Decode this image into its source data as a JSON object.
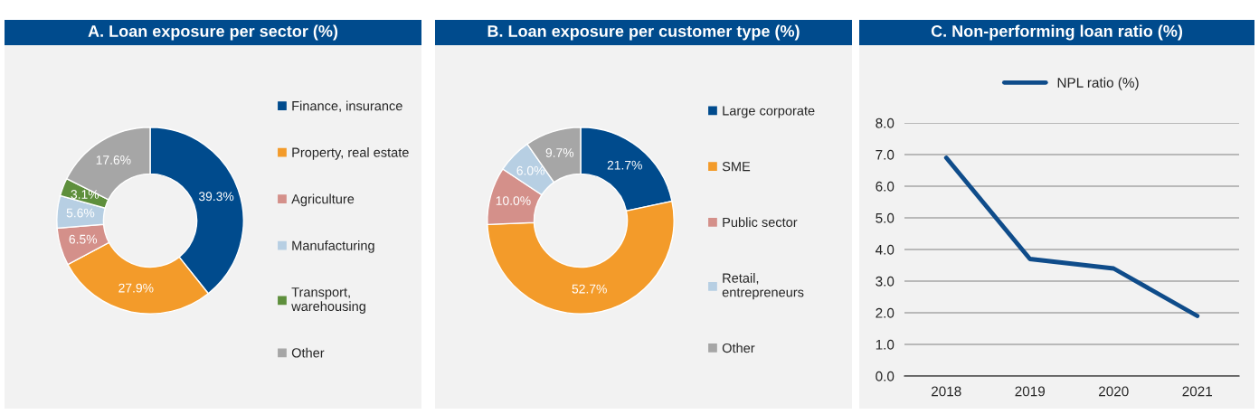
{
  "chart_data": [
    {
      "type": "donut",
      "title": "A. Loan exposure per sector (%)",
      "categories": [
        "Finance, insurance",
        "Property, real estate",
        "Agriculture",
        "Manufacturing",
        "Transport,\nwarehousing",
        "Other"
      ],
      "values": [
        39.3,
        27.9,
        6.5,
        5.6,
        3.1,
        17.6
      ],
      "colors": [
        "#004b8d",
        "#f39b2a",
        "#d4908a",
        "#b7cfe3",
        "#5e8f3c",
        "#a6a6a6"
      ],
      "value_labels": [
        "39.3%",
        "27.9%",
        "6.5%",
        "5.6%",
        "3.1%",
        "17.6%"
      ],
      "legend": "right"
    },
    {
      "type": "donut",
      "title": "B. Loan exposure per customer type (%)",
      "categories": [
        "Large corporate",
        "SME",
        "Public sector",
        "Retail,\nentrepreneurs",
        "Other"
      ],
      "values": [
        21.7,
        52.7,
        10.0,
        6.0,
        9.7
      ],
      "colors": [
        "#004b8d",
        "#f39b2a",
        "#d4908a",
        "#b7cfe3",
        "#a6a6a6"
      ],
      "value_labels": [
        "21.7%",
        "52.7%",
        "10.0%",
        "6.0%",
        "9.7%"
      ],
      "legend": "right"
    },
    {
      "type": "line",
      "title": "C. Non-performing loan ratio (%)",
      "categories": [
        "2018",
        "2019",
        "2020",
        "2021"
      ],
      "series": [
        {
          "name": "NPL ratio (%)",
          "color": "#0f4c8a",
          "values": [
            6.9,
            3.7,
            3.4,
            1.9
          ]
        }
      ],
      "ylim": [
        0,
        8
      ],
      "yticks": [
        {
          "value": 0,
          "label": "0.0"
        },
        {
          "value": 1,
          "label": "1.0"
        },
        {
          "value": 2,
          "label": "2.0"
        },
        {
          "value": 3,
          "label": "3.0"
        },
        {
          "value": 4,
          "label": "4.0"
        },
        {
          "value": 5,
          "label": "5.0"
        },
        {
          "value": 6,
          "label": "6.0"
        },
        {
          "value": 7,
          "label": "7.0"
        },
        {
          "value": 8,
          "label": "8.0"
        }
      ],
      "grid": "y",
      "legend": "top",
      "marker": "none",
      "line_style": "solid"
    }
  ]
}
